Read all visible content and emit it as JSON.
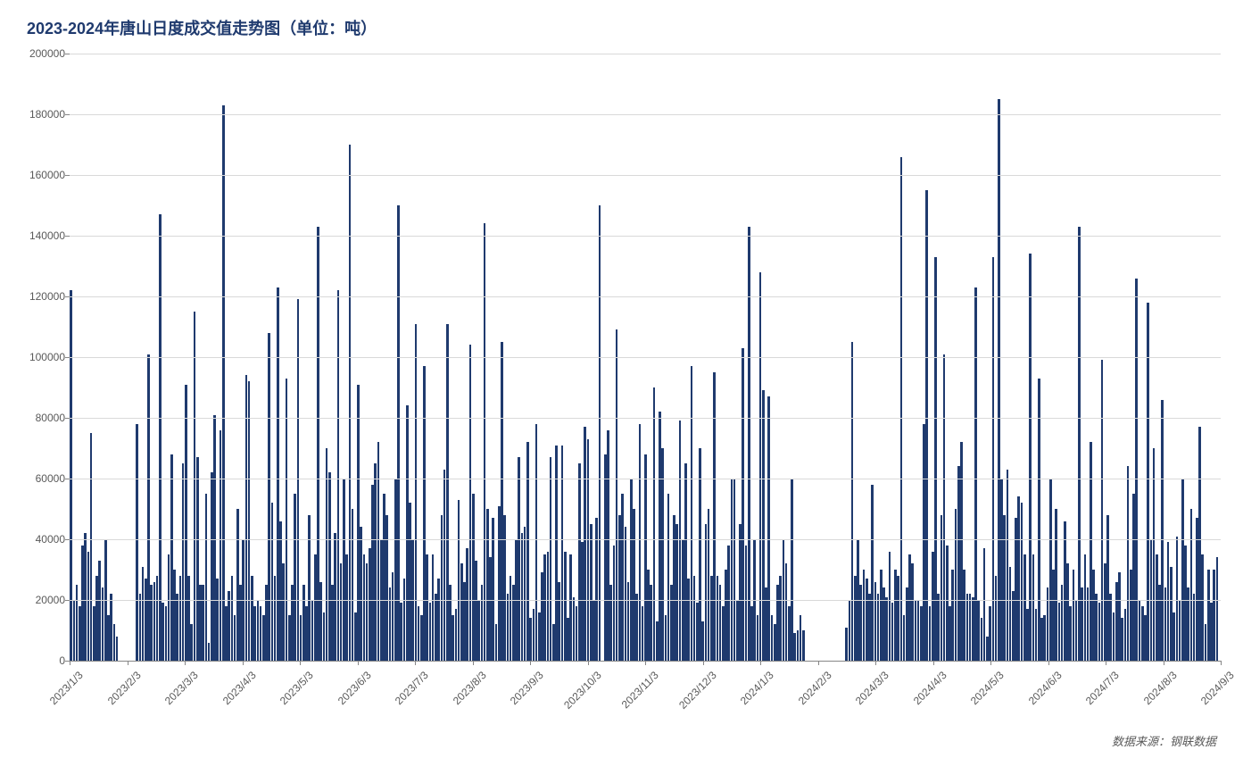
{
  "chart": {
    "type": "bar",
    "title": "2023-2024年唐山日度成交值走势图（单位：吨）",
    "title_color": "#1f3a6e",
    "title_fontsize": 18,
    "background_color": "#ffffff",
    "grid_color": "#d9d9d9",
    "axis_color": "#868686",
    "tick_label_color": "#595959",
    "tick_fontsize": 12,
    "bar_color": "#1f3a6e",
    "source_label": "数据来源：钢联数据",
    "source_color": "#595959",
    "ylim": [
      0,
      200000
    ],
    "ytick_step": 20000,
    "yticks": [
      0,
      20000,
      40000,
      60000,
      80000,
      100000,
      120000,
      140000,
      160000,
      180000,
      200000
    ],
    "x_labels": [
      "2023/1/3",
      "2023/2/3",
      "2023/3/3",
      "2023/4/3",
      "2023/5/3",
      "2023/6/3",
      "2023/7/3",
      "2023/8/3",
      "2023/9/3",
      "2023/10/3",
      "2023/11/3",
      "2023/12/3",
      "2024/1/3",
      "2024/2/3",
      "2024/3/3",
      "2024/4/3",
      "2024/5/3",
      "2024/6/3",
      "2024/7/3",
      "2024/8/3",
      "2024/9/3"
    ],
    "values": [
      122000,
      20000,
      25000,
      18000,
      38000,
      42000,
      36000,
      75000,
      18000,
      28000,
      33000,
      24000,
      40000,
      15000,
      22000,
      12000,
      8000,
      0,
      0,
      0,
      0,
      0,
      0,
      78000,
      22000,
      31000,
      27000,
      101000,
      25000,
      26000,
      28000,
      147000,
      19000,
      18000,
      35000,
      68000,
      30000,
      22000,
      28000,
      65000,
      91000,
      28000,
      12000,
      115000,
      67000,
      25000,
      25000,
      55000,
      6000,
      62000,
      81000,
      27000,
      76000,
      183000,
      18000,
      23000,
      28000,
      15000,
      50000,
      25000,
      40000,
      94000,
      92000,
      28000,
      18000,
      20000,
      18000,
      15000,
      25000,
      108000,
      52000,
      28000,
      123000,
      46000,
      32000,
      93000,
      15000,
      25000,
      55000,
      119000,
      15000,
      25000,
      18000,
      48000,
      20000,
      35000,
      143000,
      26000,
      16000,
      70000,
      62000,
      25000,
      42000,
      122000,
      32000,
      60000,
      35000,
      170000,
      50000,
      16000,
      91000,
      44000,
      35000,
      32000,
      37000,
      58000,
      65000,
      72000,
      40000,
      55000,
      48000,
      24000,
      29000,
      60000,
      150000,
      19000,
      27000,
      84000,
      52000,
      40000,
      111000,
      18000,
      15000,
      97000,
      35000,
      19000,
      35000,
      22000,
      27000,
      48000,
      63000,
      111000,
      25000,
      15000,
      17000,
      53000,
      32000,
      26000,
      37000,
      104000,
      55000,
      33000,
      20000,
      25000,
      144000,
      50000,
      34000,
      47000,
      12000,
      51000,
      105000,
      48000,
      22000,
      28000,
      25000,
      40000,
      67000,
      42000,
      44000,
      72000,
      14000,
      17000,
      78000,
      16000,
      29000,
      35000,
      36000,
      67000,
      12000,
      71000,
      26000,
      71000,
      36000,
      14000,
      35000,
      21000,
      18000,
      65000,
      39000,
      77000,
      73000,
      45000,
      20000,
      47000,
      150000,
      0,
      68000,
      76000,
      25000,
      38000,
      109000,
      48000,
      55000,
      44000,
      26000,
      60000,
      50000,
      22000,
      78000,
      18000,
      68000,
      30000,
      25000,
      90000,
      13000,
      82000,
      70000,
      15000,
      55000,
      25000,
      48000,
      45000,
      79000,
      40000,
      65000,
      27000,
      97000,
      28000,
      19000,
      70000,
      13000,
      45000,
      50000,
      28000,
      95000,
      28000,
      25000,
      18000,
      30000,
      38000,
      60000,
      60000,
      20000,
      45000,
      103000,
      38000,
      143000,
      18000,
      40000,
      15000,
      128000,
      89000,
      24000,
      87000,
      15000,
      12000,
      25000,
      28000,
      40000,
      32000,
      18000,
      60000,
      9000,
      10000,
      15000,
      10000,
      0,
      0,
      0,
      0,
      0,
      0,
      0,
      0,
      0,
      0,
      0,
      0,
      0,
      0,
      11000,
      20000,
      105000,
      28000,
      40000,
      25000,
      30000,
      27000,
      22000,
      58000,
      26000,
      22000,
      30000,
      24000,
      21000,
      36000,
      19000,
      30000,
      28000,
      166000,
      15000,
      24000,
      35000,
      32000,
      20000,
      20000,
      18000,
      78000,
      155000,
      18000,
      36000,
      133000,
      22000,
      48000,
      101000,
      38000,
      18000,
      30000,
      50000,
      64000,
      72000,
      30000,
      22000,
      22000,
      21000,
      123000,
      20000,
      14000,
      37000,
      8000,
      18000,
      133000,
      28000,
      185000,
      60000,
      48000,
      63000,
      31000,
      23000,
      47000,
      54000,
      52000,
      35000,
      17000,
      134000,
      35000,
      17000,
      93000,
      14000,
      15000,
      24000,
      60000,
      30000,
      50000,
      19000,
      25000,
      46000,
      32000,
      18000,
      30000,
      20000,
      143000,
      24000,
      35000,
      24000,
      72000,
      30000,
      22000,
      19000,
      99000,
      32000,
      48000,
      22000,
      16000,
      26000,
      29000,
      14000,
      17000,
      64000,
      30000,
      55000,
      126000,
      20000,
      18000,
      15000,
      118000,
      40000,
      70000,
      35000,
      25000,
      86000,
      24000,
      39000,
      31000,
      16000,
      41000,
      20000,
      60000,
      38000,
      24000,
      50000,
      22000,
      47000,
      77000,
      35000,
      12000,
      30000,
      19000,
      30000,
      34000
    ]
  }
}
